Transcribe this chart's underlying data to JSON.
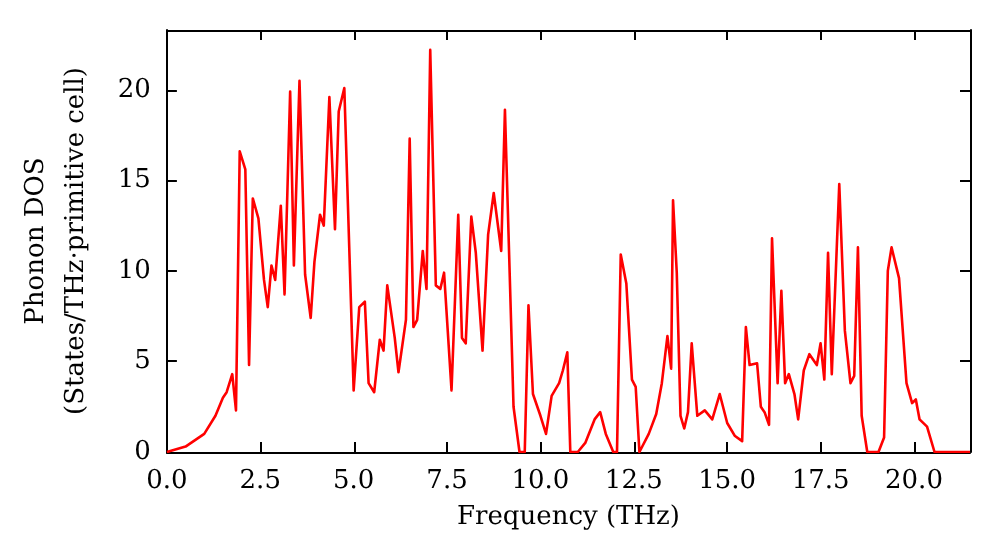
{
  "chart_data": {
    "type": "line",
    "xlabel": "Frequency (THz)",
    "ylabel": "Phonon DOS\n(States/THz·primitive cell)",
    "xlim": [
      0,
      21.5
    ],
    "ylim": [
      0,
      23.3
    ],
    "xticks": [
      {
        "value": 0,
        "label": "0.0"
      },
      {
        "value": 2.5,
        "label": "2.5"
      },
      {
        "value": 5,
        "label": "5.0"
      },
      {
        "value": 7.5,
        "label": "7.5"
      },
      {
        "value": 10,
        "label": "10.0"
      },
      {
        "value": 12.5,
        "label": "12.5"
      },
      {
        "value": 15,
        "label": "15.0"
      },
      {
        "value": 17.5,
        "label": "17.5"
      },
      {
        "value": 20,
        "label": "20.0"
      }
    ],
    "yticks": [
      0,
      5,
      10,
      15,
      20
    ],
    "grid": false,
    "marker": "none",
    "line_style": "solid",
    "series": [
      {
        "color": "#ff0000",
        "x": [
          0,
          0.5,
          1.0,
          1.3,
          1.5,
          1.6,
          1.75,
          1.85,
          1.95,
          2.1,
          2.2,
          2.3,
          2.45,
          2.6,
          2.7,
          2.8,
          2.9,
          3.05,
          3.15,
          3.3,
          3.4,
          3.55,
          3.7,
          3.85,
          3.95,
          4.1,
          4.2,
          4.35,
          4.5,
          4.6,
          4.75,
          5.0,
          5.15,
          5.3,
          5.4,
          5.55,
          5.7,
          5.8,
          5.9,
          6.1,
          6.2,
          6.4,
          6.5,
          6.6,
          6.7,
          6.85,
          6.95,
          7.05,
          7.2,
          7.32,
          7.42,
          7.62,
          7.8,
          7.9,
          8.0,
          8.15,
          8.27,
          8.45,
          8.6,
          8.75,
          8.95,
          9.05,
          9.28,
          9.44,
          9.58,
          9.68,
          9.8,
          10.0,
          10.15,
          10.3,
          10.5,
          10.6,
          10.72,
          10.8,
          11.0,
          11.2,
          11.45,
          11.6,
          11.75,
          11.95,
          12.05,
          12.15,
          12.3,
          12.45,
          12.55,
          12.65,
          12.9,
          13.1,
          13.25,
          13.4,
          13.5,
          13.55,
          13.65,
          13.75,
          13.85,
          13.95,
          14.05,
          14.2,
          14.4,
          14.6,
          14.8,
          15.0,
          15.2,
          15.4,
          15.5,
          15.6,
          15.8,
          15.9,
          16.0,
          16.12,
          16.2,
          16.35,
          16.45,
          16.55,
          16.65,
          16.8,
          16.9,
          17.05,
          17.2,
          17.4,
          17.5,
          17.6,
          17.7,
          17.8,
          18.0,
          18.15,
          18.3,
          18.4,
          18.5,
          18.6,
          18.75,
          19.05,
          19.2,
          19.3,
          19.4,
          19.6,
          19.8,
          19.95,
          20.05,
          20.15,
          20.35,
          20.55,
          21.5
        ],
        "values": [
          0,
          0.3,
          1.0,
          2.0,
          3.0,
          3.3,
          4.3,
          2.3,
          16.6,
          15.6,
          4.8,
          14.0,
          12.9,
          9.5,
          8.0,
          10.3,
          9.5,
          13.6,
          8.7,
          19.9,
          10.3,
          20.5,
          9.8,
          7.4,
          10.5,
          13.1,
          12.5,
          19.6,
          12.3,
          18.8,
          20.1,
          3.4,
          8.0,
          8.3,
          3.8,
          3.3,
          6.2,
          5.6,
          9.2,
          6.3,
          4.4,
          7.3,
          17.3,
          6.9,
          7.3,
          11.1,
          9.0,
          22.2,
          9.2,
          9.0,
          9.9,
          3.4,
          13.1,
          6.3,
          6.0,
          13.0,
          11.0,
          5.6,
          12.0,
          14.3,
          11.1,
          18.9,
          2.5,
          0,
          0,
          8.1,
          3.2,
          2.0,
          1.0,
          3.1,
          3.8,
          4.5,
          5.5,
          0,
          0,
          0.5,
          1.8,
          2.2,
          1.0,
          0,
          0,
          10.9,
          9.3,
          4.0,
          3.6,
          0,
          1.0,
          2.1,
          3.8,
          6.4,
          4.6,
          13.9,
          9.9,
          2.0,
          1.3,
          2.2,
          6.0,
          2.0,
          2.3,
          1.8,
          3.2,
          1.6,
          0.9,
          0.6,
          6.9,
          4.8,
          4.9,
          2.5,
          2.2,
          1.5,
          11.8,
          3.8,
          8.9,
          3.8,
          4.3,
          3.2,
          1.8,
          4.5,
          5.4,
          4.8,
          6.0,
          4.0,
          11.0,
          4.3,
          14.8,
          6.7,
          3.8,
          4.2,
          11.3,
          2.0,
          0,
          0,
          0.8,
          10.0,
          11.3,
          9.6,
          3.8,
          2.7,
          2.9,
          1.8,
          1.4,
          0,
          0
        ]
      }
    ]
  }
}
